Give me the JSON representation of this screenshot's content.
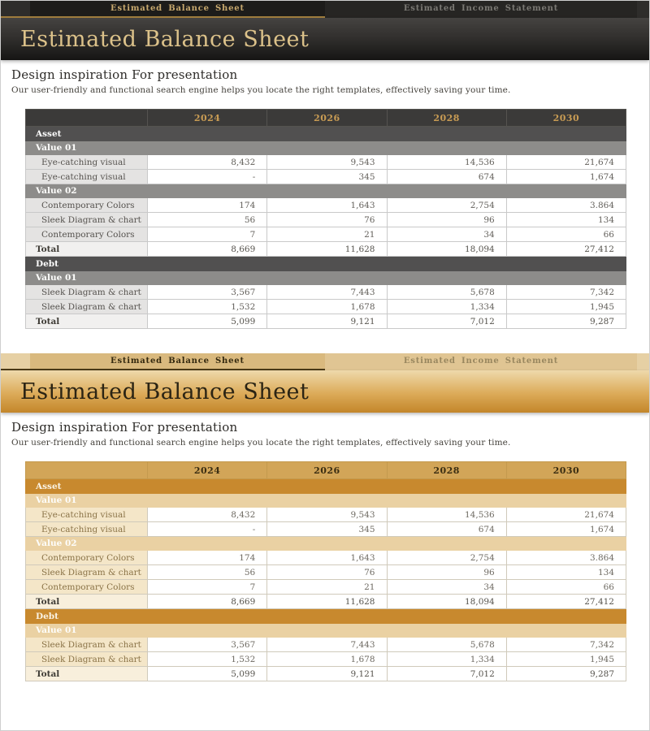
{
  "title": "Estimated Balance Sheet",
  "tabs": [
    {
      "label": "Estimated Balance Sheet",
      "active": true
    },
    {
      "label": "Estimated Income Statement",
      "active": false
    }
  ],
  "intro": {
    "heading": "Design inspiration For presentation",
    "description": "Our user-friendly and functional search engine helps you locate the right templates, effectively saving your time."
  },
  "table": {
    "columns": [
      "",
      "2024",
      "2026",
      "2028",
      "2030"
    ],
    "rows": [
      {
        "type": "section",
        "label": "Asset"
      },
      {
        "type": "subsection",
        "label": "Value 01"
      },
      {
        "type": "data",
        "label": "Eye-catching visual",
        "values": [
          "8,432",
          "9,543",
          "14,536",
          "21,674"
        ]
      },
      {
        "type": "data",
        "label": "Eye-catching visual",
        "values": [
          "-",
          "345",
          "674",
          "1,674"
        ]
      },
      {
        "type": "subsection",
        "label": "Value 02"
      },
      {
        "type": "data",
        "label": "Contemporary Colors",
        "values": [
          "174",
          "1,643",
          "2,754",
          "3.864"
        ]
      },
      {
        "type": "data",
        "label": "Sleek Diagram & chart",
        "values": [
          "56",
          "76",
          "96",
          "134"
        ]
      },
      {
        "type": "data",
        "label": "Contemporary Colors",
        "values": [
          "7",
          "21",
          "34",
          "66"
        ]
      },
      {
        "type": "total",
        "label": "Total",
        "values": [
          "8,669",
          "11,628",
          "18,094",
          "27,412"
        ]
      },
      {
        "type": "section",
        "label": "Debt"
      },
      {
        "type": "subsection",
        "label": "Value 01"
      },
      {
        "type": "data",
        "label": "Sleek Diagram & chart",
        "values": [
          "3,567",
          "7,443",
          "5,678",
          "7,342"
        ]
      },
      {
        "type": "data",
        "label": "Sleek Diagram & chart",
        "values": [
          "1,532",
          "1,678",
          "1,334",
          "1,945"
        ]
      },
      {
        "type": "total",
        "label": "Total",
        "values": [
          "5,099",
          "9,121",
          "7,012",
          "9,287"
        ]
      }
    ]
  },
  "themes": {
    "dark": {
      "accent": "#c99c54",
      "tab_underline": "#a3803f",
      "title_color": "#dcc28a",
      "section_bg": "#515050"
    },
    "gold": {
      "accent": "#c8892e",
      "tab_underline": "#4c3b17",
      "title_color": "#2b2414",
      "section_bg": "#c8892e"
    }
  }
}
